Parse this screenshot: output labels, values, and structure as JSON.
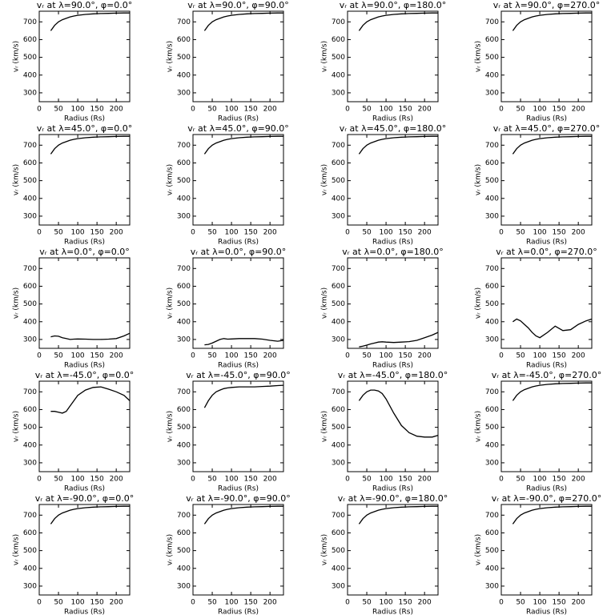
{
  "chart_data": [
    {
      "type": "line",
      "title": "vᵣ at λ=90.0°, φ=0.0°",
      "xlabel": "Radius (Rs)",
      "ylabel": "vᵣ (km/s)",
      "color": "#000000",
      "xlim": [
        0,
        235
      ],
      "ylim": [
        250,
        760
      ],
      "xticks": [
        0,
        50,
        100,
        150,
        200
      ],
      "yticks": [
        300,
        400,
        500,
        600,
        700
      ],
      "x": [
        30,
        40,
        50,
        60,
        70,
        80,
        90,
        100,
        120,
        140,
        160,
        180,
        200,
        220,
        235
      ],
      "values": [
        650,
        680,
        700,
        712,
        720,
        728,
        733,
        737,
        742,
        745,
        747,
        748,
        749,
        750,
        750
      ]
    },
    {
      "type": "line",
      "title": "vᵣ at λ=90.0°, φ=90.0°",
      "xlabel": "Radius (Rs)",
      "ylabel": "vᵣ (km/s)",
      "color": "#000000",
      "xlim": [
        0,
        235
      ],
      "ylim": [
        250,
        760
      ],
      "xticks": [
        0,
        50,
        100,
        150,
        200
      ],
      "yticks": [
        300,
        400,
        500,
        600,
        700
      ],
      "x": [
        30,
        40,
        50,
        60,
        70,
        80,
        90,
        100,
        120,
        140,
        160,
        180,
        200,
        220,
        235
      ],
      "values": [
        650,
        680,
        700,
        712,
        720,
        728,
        733,
        737,
        742,
        745,
        747,
        748,
        749,
        750,
        750
      ]
    },
    {
      "type": "line",
      "title": "vᵣ at λ=90.0°, φ=180.0°",
      "xlabel": "Radius (Rs)",
      "ylabel": "vᵣ (km/s)",
      "color": "#000000",
      "xlim": [
        0,
        235
      ],
      "ylim": [
        250,
        760
      ],
      "xticks": [
        0,
        50,
        100,
        150,
        200
      ],
      "yticks": [
        300,
        400,
        500,
        600,
        700
      ],
      "x": [
        30,
        40,
        50,
        60,
        70,
        80,
        90,
        100,
        120,
        140,
        160,
        180,
        200,
        220,
        235
      ],
      "values": [
        650,
        680,
        700,
        712,
        720,
        728,
        733,
        737,
        742,
        745,
        747,
        748,
        749,
        750,
        750
      ]
    },
    {
      "type": "line",
      "title": "vᵣ at λ=90.0°, φ=270.0°",
      "xlabel": "Radius (Rs)",
      "ylabel": "vᵣ (km/s)",
      "color": "#000000",
      "xlim": [
        0,
        235
      ],
      "ylim": [
        250,
        760
      ],
      "xticks": [
        0,
        50,
        100,
        150,
        200
      ],
      "yticks": [
        300,
        400,
        500,
        600,
        700
      ],
      "x": [
        30,
        40,
        50,
        60,
        70,
        80,
        90,
        100,
        120,
        140,
        160,
        180,
        200,
        220,
        235
      ],
      "values": [
        650,
        680,
        700,
        712,
        720,
        728,
        733,
        737,
        742,
        745,
        747,
        748,
        749,
        750,
        750
      ]
    },
    {
      "type": "line",
      "title": "vᵣ at λ=45.0°, φ=0.0°",
      "xlabel": "Radius (Rs)",
      "ylabel": "vᵣ (km/s)",
      "color": "#000000",
      "xlim": [
        0,
        235
      ],
      "ylim": [
        250,
        760
      ],
      "xticks": [
        0,
        50,
        100,
        150,
        200
      ],
      "yticks": [
        300,
        400,
        500,
        600,
        700
      ],
      "x": [
        30,
        40,
        50,
        60,
        70,
        80,
        90,
        100,
        120,
        140,
        160,
        180,
        200,
        220,
        235
      ],
      "values": [
        650,
        680,
        700,
        712,
        720,
        728,
        733,
        737,
        742,
        745,
        747,
        748,
        749,
        750,
        750
      ]
    },
    {
      "type": "line",
      "title": "vᵣ at λ=45.0°, φ=90.0°",
      "xlabel": "Radius (Rs)",
      "ylabel": "vᵣ (km/s)",
      "color": "#000000",
      "xlim": [
        0,
        235
      ],
      "ylim": [
        250,
        760
      ],
      "xticks": [
        0,
        50,
        100,
        150,
        200
      ],
      "yticks": [
        300,
        400,
        500,
        600,
        700
      ],
      "x": [
        30,
        40,
        50,
        60,
        70,
        80,
        90,
        100,
        120,
        140,
        160,
        180,
        200,
        220,
        235
      ],
      "values": [
        650,
        680,
        700,
        712,
        720,
        728,
        733,
        737,
        742,
        745,
        747,
        748,
        749,
        750,
        750
      ]
    },
    {
      "type": "line",
      "title": "vᵣ at λ=45.0°, φ=180.0°",
      "xlabel": "Radius (Rs)",
      "ylabel": "vᵣ (km/s)",
      "color": "#000000",
      "xlim": [
        0,
        235
      ],
      "ylim": [
        250,
        760
      ],
      "xticks": [
        0,
        50,
        100,
        150,
        200
      ],
      "yticks": [
        300,
        400,
        500,
        600,
        700
      ],
      "x": [
        30,
        40,
        50,
        60,
        70,
        80,
        90,
        100,
        120,
        140,
        160,
        180,
        200,
        220,
        235
      ],
      "values": [
        650,
        680,
        700,
        712,
        720,
        728,
        733,
        737,
        742,
        745,
        747,
        748,
        749,
        750,
        750
      ]
    },
    {
      "type": "line",
      "title": "vᵣ at λ=45.0°, φ=270.0°",
      "xlabel": "Radius (Rs)",
      "ylabel": "vᵣ (km/s)",
      "color": "#000000",
      "xlim": [
        0,
        235
      ],
      "ylim": [
        250,
        760
      ],
      "xticks": [
        0,
        50,
        100,
        150,
        200
      ],
      "yticks": [
        300,
        400,
        500,
        600,
        700
      ],
      "x": [
        30,
        40,
        50,
        60,
        70,
        80,
        90,
        100,
        120,
        140,
        160,
        180,
        200,
        220,
        235
      ],
      "values": [
        650,
        680,
        700,
        712,
        720,
        728,
        733,
        737,
        742,
        745,
        747,
        748,
        749,
        750,
        750
      ]
    },
    {
      "type": "line",
      "title": "vᵣ at λ=0.0°, φ=0.0°",
      "xlabel": "Radius (Rs)",
      "ylabel": "vᵣ (km/s)",
      "color": "#000000",
      "xlim": [
        0,
        235
      ],
      "ylim": [
        250,
        760
      ],
      "xticks": [
        0,
        50,
        100,
        150,
        200
      ],
      "yticks": [
        300,
        400,
        500,
        600,
        700
      ],
      "x": [
        30,
        40,
        50,
        60,
        70,
        80,
        90,
        100,
        120,
        140,
        160,
        180,
        200,
        220,
        235
      ],
      "values": [
        315,
        320,
        318,
        310,
        305,
        300,
        302,
        303,
        302,
        300,
        300,
        302,
        305,
        320,
        335
      ]
    },
    {
      "type": "line",
      "title": "vᵣ at λ=0.0°, φ=90.0°",
      "xlabel": "Radius (Rs)",
      "ylabel": "vᵣ (km/s)",
      "color": "#000000",
      "xlim": [
        0,
        235
      ],
      "ylim": [
        250,
        760
      ],
      "xticks": [
        0,
        50,
        100,
        150,
        200
      ],
      "yticks": [
        300,
        400,
        500,
        600,
        700
      ],
      "x": [
        30,
        40,
        50,
        60,
        70,
        80,
        90,
        100,
        120,
        140,
        160,
        180,
        200,
        220,
        235
      ],
      "values": [
        270,
        272,
        280,
        290,
        300,
        305,
        302,
        303,
        305,
        305,
        305,
        302,
        295,
        290,
        295
      ]
    },
    {
      "type": "line",
      "title": "vᵣ at λ=0.0°, φ=180.0°",
      "xlabel": "Radius (Rs)",
      "ylabel": "vᵣ (km/s)",
      "color": "#000000",
      "xlim": [
        0,
        235
      ],
      "ylim": [
        250,
        760
      ],
      "xticks": [
        0,
        50,
        100,
        150,
        200
      ],
      "yticks": [
        300,
        400,
        500,
        600,
        700
      ],
      "x": [
        30,
        40,
        50,
        60,
        70,
        80,
        90,
        100,
        120,
        140,
        160,
        180,
        200,
        220,
        235
      ],
      "values": [
        258,
        262,
        268,
        275,
        280,
        285,
        287,
        285,
        283,
        285,
        288,
        295,
        310,
        325,
        340
      ]
    },
    {
      "type": "line",
      "title": "vᵣ at λ=0.0°, φ=270.0°",
      "xlabel": "Radius (Rs)",
      "ylabel": "vᵣ (km/s)",
      "color": "#000000",
      "xlim": [
        0,
        235
      ],
      "ylim": [
        250,
        760
      ],
      "xticks": [
        0,
        50,
        100,
        150,
        200
      ],
      "yticks": [
        300,
        400,
        500,
        600,
        700
      ],
      "x": [
        30,
        40,
        50,
        60,
        70,
        80,
        90,
        100,
        120,
        140,
        160,
        180,
        200,
        220,
        235
      ],
      "values": [
        400,
        415,
        405,
        385,
        365,
        340,
        320,
        310,
        340,
        375,
        350,
        355,
        385,
        405,
        415
      ]
    },
    {
      "type": "line",
      "title": "vᵣ at λ=-45.0°, φ=0.0°",
      "xlabel": "Radius (Rs)",
      "ylabel": "vᵣ (km/s)",
      "color": "#000000",
      "xlim": [
        0,
        235
      ],
      "ylim": [
        250,
        760
      ],
      "xticks": [
        0,
        50,
        100,
        150,
        200
      ],
      "yticks": [
        300,
        400,
        500,
        600,
        700
      ],
      "x": [
        30,
        40,
        50,
        60,
        70,
        80,
        90,
        100,
        120,
        140,
        160,
        180,
        200,
        220,
        235
      ],
      "values": [
        590,
        590,
        585,
        580,
        590,
        620,
        650,
        680,
        710,
        725,
        728,
        715,
        700,
        680,
        650
      ]
    },
    {
      "type": "line",
      "title": "vᵣ at λ=-45.0°, φ=90.0°",
      "xlabel": "Radius (Rs)",
      "ylabel": "vᵣ (km/s)",
      "color": "#000000",
      "xlim": [
        0,
        235
      ],
      "ylim": [
        250,
        760
      ],
      "xticks": [
        0,
        50,
        100,
        150,
        200
      ],
      "yticks": [
        300,
        400,
        500,
        600,
        700
      ],
      "x": [
        30,
        40,
        50,
        60,
        70,
        80,
        90,
        100,
        120,
        140,
        160,
        180,
        200,
        220,
        235
      ],
      "values": [
        610,
        650,
        680,
        700,
        710,
        718,
        722,
        725,
        728,
        728,
        728,
        730,
        732,
        735,
        737
      ]
    },
    {
      "type": "line",
      "title": "vᵣ at λ=-45.0°, φ=180.0°",
      "xlabel": "Radius (Rs)",
      "ylabel": "vᵣ (km/s)",
      "color": "#000000",
      "xlim": [
        0,
        235
      ],
      "ylim": [
        250,
        760
      ],
      "xticks": [
        0,
        50,
        100,
        150,
        200
      ],
      "yticks": [
        300,
        400,
        500,
        600,
        700
      ],
      "x": [
        30,
        40,
        50,
        60,
        70,
        80,
        90,
        100,
        120,
        140,
        160,
        180,
        200,
        220,
        235
      ],
      "values": [
        650,
        680,
        700,
        710,
        710,
        705,
        690,
        660,
        580,
        510,
        470,
        450,
        445,
        445,
        455
      ]
    },
    {
      "type": "line",
      "title": "vᵣ at λ=-45.0°, φ=270.0°",
      "xlabel": "Radius (Rs)",
      "ylabel": "vᵣ (km/s)",
      "color": "#000000",
      "xlim": [
        0,
        235
      ],
      "ylim": [
        250,
        760
      ],
      "xticks": [
        0,
        50,
        100,
        150,
        200
      ],
      "yticks": [
        300,
        400,
        500,
        600,
        700
      ],
      "x": [
        30,
        40,
        50,
        60,
        70,
        80,
        90,
        100,
        120,
        140,
        160,
        180,
        200,
        220,
        235
      ],
      "values": [
        650,
        680,
        700,
        712,
        720,
        728,
        733,
        737,
        742,
        745,
        747,
        748,
        749,
        750,
        750
      ]
    },
    {
      "type": "line",
      "title": "vᵣ at λ=-90.0°, φ=0.0°",
      "xlabel": "Radius (Rs)",
      "ylabel": "vᵣ (km/s)",
      "color": "#000000",
      "xlim": [
        0,
        235
      ],
      "ylim": [
        250,
        760
      ],
      "xticks": [
        0,
        50,
        100,
        150,
        200
      ],
      "yticks": [
        300,
        400,
        500,
        600,
        700
      ],
      "x": [
        30,
        40,
        50,
        60,
        70,
        80,
        90,
        100,
        120,
        140,
        160,
        180,
        200,
        220,
        235
      ],
      "values": [
        650,
        680,
        700,
        712,
        720,
        728,
        733,
        737,
        742,
        745,
        747,
        748,
        749,
        750,
        750
      ]
    },
    {
      "type": "line",
      "title": "vᵣ at λ=-90.0°, φ=90.0°",
      "xlabel": "Radius (Rs)",
      "ylabel": "vᵣ (km/s)",
      "color": "#000000",
      "xlim": [
        0,
        235
      ],
      "ylim": [
        250,
        760
      ],
      "xticks": [
        0,
        50,
        100,
        150,
        200
      ],
      "yticks": [
        300,
        400,
        500,
        600,
        700
      ],
      "x": [
        30,
        40,
        50,
        60,
        70,
        80,
        90,
        100,
        120,
        140,
        160,
        180,
        200,
        220,
        235
      ],
      "values": [
        650,
        680,
        700,
        712,
        720,
        728,
        733,
        737,
        742,
        745,
        747,
        748,
        749,
        750,
        750
      ]
    },
    {
      "type": "line",
      "title": "vᵣ at λ=-90.0°, φ=180.0°",
      "xlabel": "Radius (Rs)",
      "ylabel": "vᵣ (km/s)",
      "color": "#000000",
      "xlim": [
        0,
        235
      ],
      "ylim": [
        250,
        760
      ],
      "xticks": [
        0,
        50,
        100,
        150,
        200
      ],
      "yticks": [
        300,
        400,
        500,
        600,
        700
      ],
      "x": [
        30,
        40,
        50,
        60,
        70,
        80,
        90,
        100,
        120,
        140,
        160,
        180,
        200,
        220,
        235
      ],
      "values": [
        650,
        680,
        700,
        712,
        720,
        728,
        733,
        737,
        742,
        745,
        747,
        748,
        749,
        750,
        750
      ]
    },
    {
      "type": "line",
      "title": "vᵣ at λ=-90.0°, φ=270.0°",
      "xlabel": "Radius (Rs)",
      "ylabel": "vᵣ (km/s)",
      "color": "#000000",
      "xlim": [
        0,
        235
      ],
      "ylim": [
        250,
        760
      ],
      "xticks": [
        0,
        50,
        100,
        150,
        200
      ],
      "yticks": [
        300,
        400,
        500,
        600,
        700
      ],
      "x": [
        30,
        40,
        50,
        60,
        70,
        80,
        90,
        100,
        120,
        140,
        160,
        180,
        200,
        220,
        235
      ],
      "values": [
        650,
        680,
        700,
        712,
        720,
        728,
        733,
        737,
        742,
        745,
        747,
        748,
        749,
        750,
        750
      ]
    }
  ]
}
